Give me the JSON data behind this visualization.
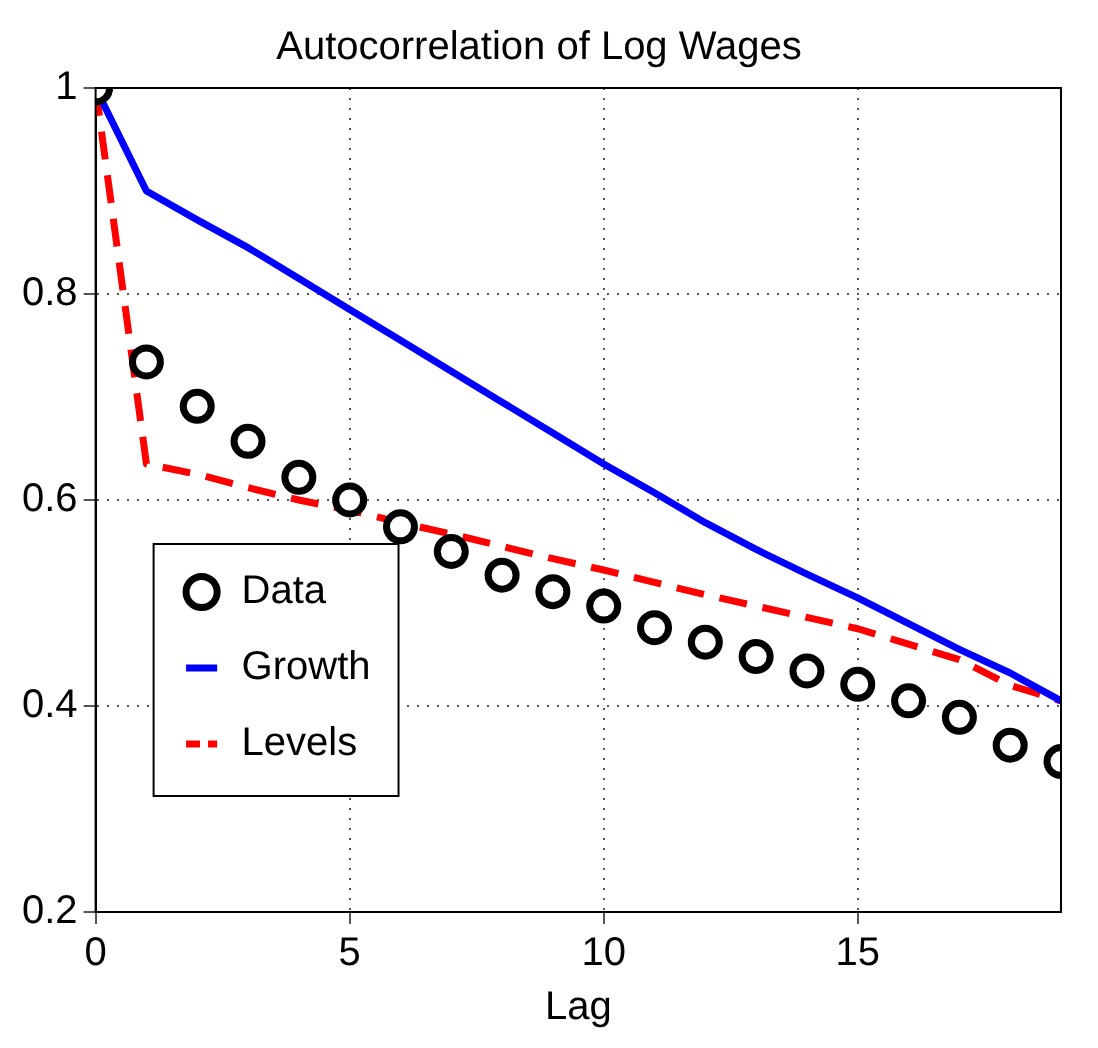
{
  "chart_data": {
    "type": "line",
    "title": "Autocorrelation of Log Wages",
    "xlabel": "Lag",
    "x": [
      0,
      1,
      2,
      3,
      4,
      5,
      6,
      7,
      8,
      9,
      10,
      11,
      12,
      13,
      14,
      15,
      16,
      17,
      18,
      19
    ],
    "series": [
      {
        "name": "Data",
        "type": "scatter",
        "color": "#000000",
        "marker": "circle",
        "values": [
          1.0,
          0.734,
          0.691,
          0.657,
          0.622,
          0.6,
          0.574,
          0.55,
          0.527,
          0.511,
          0.497,
          0.476,
          0.462,
          0.448,
          0.434,
          0.421,
          0.405,
          0.389,
          0.362,
          0.346
        ]
      },
      {
        "name": "Growth",
        "type": "line",
        "color": "#0000ff",
        "line_style": "solid",
        "values": [
          1.0,
          0.9,
          0.872,
          0.845,
          0.815,
          0.785,
          0.755,
          0.725,
          0.695,
          0.665,
          0.635,
          0.607,
          0.578,
          0.552,
          0.528,
          0.505,
          0.48,
          0.455,
          0.432,
          0.405
        ]
      },
      {
        "name": "Levels",
        "type": "line",
        "color": "#ff0000",
        "line_style": "dashed",
        "values": [
          1.0,
          0.635,
          0.625,
          0.612,
          0.6,
          0.59,
          0.578,
          0.567,
          0.555,
          0.543,
          0.532,
          0.52,
          0.508,
          0.497,
          0.486,
          0.475,
          0.46,
          0.445,
          0.42,
          0.405
        ]
      }
    ],
    "xlim": [
      0,
      19
    ],
    "xticks": [
      0,
      5,
      10,
      15
    ],
    "ylim": [
      0.2,
      1
    ],
    "yticks": [
      0.2,
      0.4,
      0.6,
      0.8,
      {
        "value": 1,
        "label": "1"
      }
    ],
    "grid": true,
    "legend": "bottom left"
  }
}
